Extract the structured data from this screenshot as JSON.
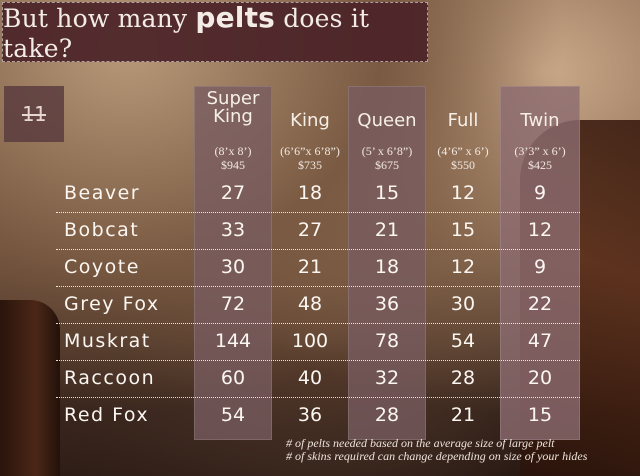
{
  "title": {
    "prefix": "But how many",
    "bold": "pelts",
    "suffix": "does it take?"
  },
  "page_number": "11",
  "columns": [
    {
      "name": "Super King",
      "size": "(8’x 8’)",
      "price": "$945"
    },
    {
      "name": "King",
      "size": "(6’6”x 6’8”)",
      "price": "$735"
    },
    {
      "name": "Queen",
      "size": "(5’ x 6’8”)",
      "price": "$675"
    },
    {
      "name": "Full",
      "size": "(4’6” x 6’)",
      "price": "$550"
    },
    {
      "name": "Twin",
      "size": "(3’3” x 6’)",
      "price": "$425"
    }
  ],
  "rows": [
    {
      "label": "Beaver",
      "values": [
        "27",
        "18",
        "15",
        "12",
        "9"
      ]
    },
    {
      "label": "Bobcat",
      "values": [
        "33",
        "27",
        "21",
        "15",
        "12"
      ]
    },
    {
      "label": "Coyote",
      "values": [
        "30",
        "21",
        "18",
        "12",
        "9"
      ]
    },
    {
      "label": "Grey Fox",
      "values": [
        "72",
        "48",
        "36",
        "30",
        "22"
      ]
    },
    {
      "label": "Muskrat",
      "values": [
        "144",
        "100",
        "78",
        "54",
        "47"
      ]
    },
    {
      "label": "Raccoon",
      "values": [
        "60",
        "40",
        "32",
        "28",
        "20"
      ]
    },
    {
      "label": "Red Fox",
      "values": [
        "54",
        "36",
        "28",
        "21",
        "15"
      ]
    }
  ],
  "footnotes": [
    "# of pelts needed based on the average size of large pelt",
    "# of skins required can change depending on size of your hides"
  ]
}
